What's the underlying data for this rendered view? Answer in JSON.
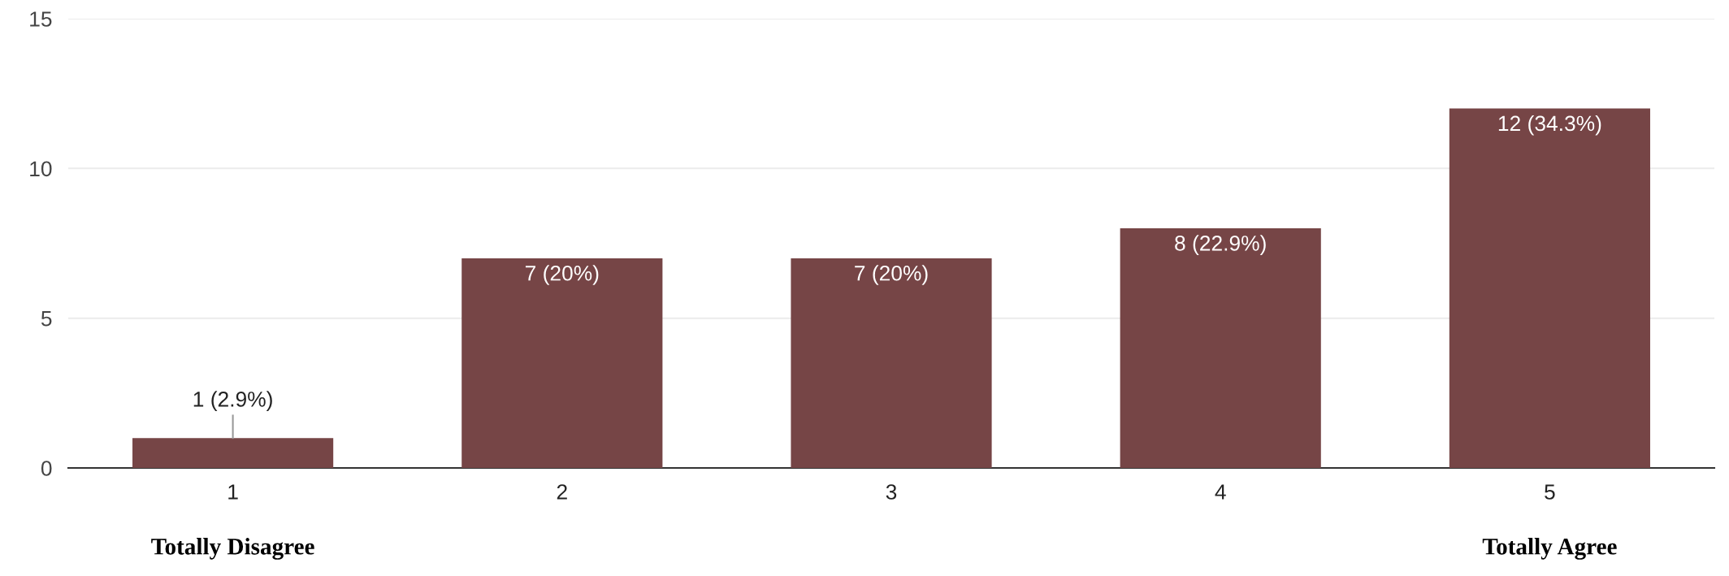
{
  "chart_data": {
    "type": "bar",
    "categories": [
      "1",
      "2",
      "3",
      "4",
      "5"
    ],
    "values": [
      1,
      7,
      7,
      8,
      12
    ],
    "value_labels": [
      "1 (2.9%)",
      "7 (20%)",
      "7 (20%)",
      "8 (22.9%)",
      "12 (34.3%)"
    ],
    "color": "#764546",
    "ylim": [
      0,
      15
    ],
    "yticks": [
      0,
      5,
      10,
      15
    ],
    "grid": "y",
    "annotations": [
      "Totally Disagree",
      "Totally Agree"
    ]
  }
}
